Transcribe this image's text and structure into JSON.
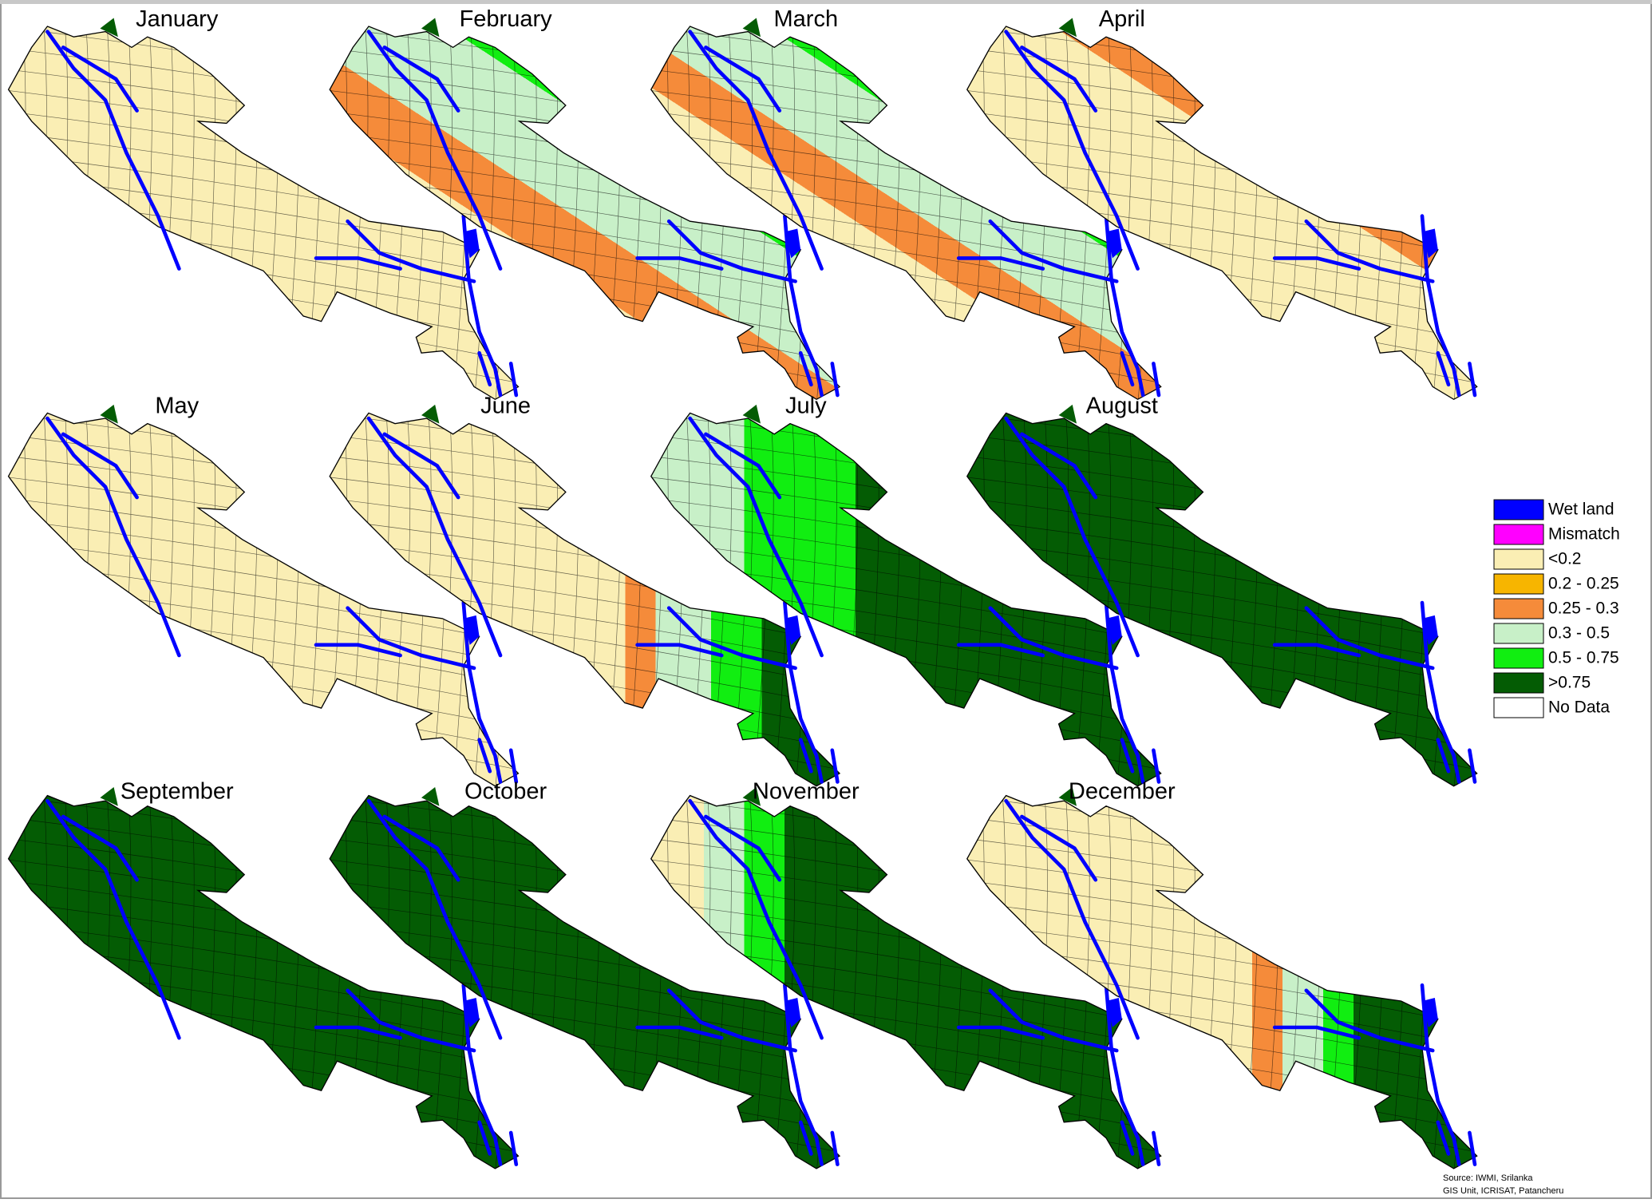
{
  "panels": [
    {
      "label": "January"
    },
    {
      "label": "February"
    },
    {
      "label": "March"
    },
    {
      "label": "April"
    },
    {
      "label": "May"
    },
    {
      "label": "June"
    },
    {
      "label": "July"
    },
    {
      "label": "August"
    },
    {
      "label": "September"
    },
    {
      "label": "October"
    },
    {
      "label": "November"
    },
    {
      "label": "December"
    }
  ],
  "legend": {
    "items": [
      {
        "label": "Wet land",
        "color": "#0000ff"
      },
      {
        "label": "Mismatch",
        "color": "#ff00ff"
      },
      {
        "label": "<0.2",
        "color": "#faeeb4"
      },
      {
        "label": "0.2 - 0.25",
        "color": "#f7b500"
      },
      {
        "label": "0.25 - 0.3",
        "color": "#f58b3a"
      },
      {
        "label": "0.3 - 0.5",
        "color": "#c8f0c8"
      },
      {
        "label": "0.5 - 0.75",
        "color": "#11ee11"
      },
      {
        "label": ">0.75",
        "color": "#045c04"
      },
      {
        "label": "No Data",
        "color": "#ffffff"
      }
    ]
  },
  "source": [
    "Source: IWMI, Srilanka",
    "GIS Unit, ICRISAT, Patancheru"
  ]
}
